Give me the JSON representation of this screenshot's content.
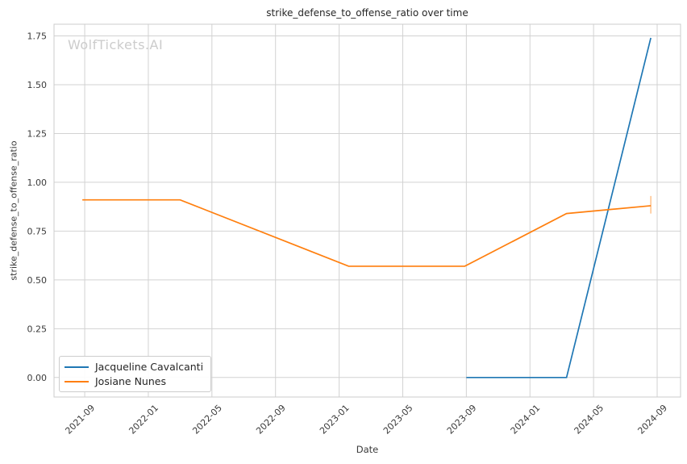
{
  "watermark": "WolfTickets.AI",
  "chart_data": {
    "type": "line",
    "title": "strike_defense_to_offense_ratio over time",
    "xlabel": "Date",
    "ylabel": "strike_defense_to_offense_ratio",
    "grid": true,
    "legend_position": "lower left",
    "x_unit": "months since 2021-09",
    "x_tick_months": [
      0,
      4,
      8,
      12,
      16,
      20,
      24,
      28,
      32,
      36
    ],
    "x_tick_labels": [
      "2021-09",
      "2022-01",
      "2022-05",
      "2022-09",
      "2023-01",
      "2023-05",
      "2023-09",
      "2024-01",
      "2024-05",
      "2024-09"
    ],
    "y_ticks": [
      0.0,
      0.25,
      0.5,
      0.75,
      1.0,
      1.25,
      1.5,
      1.75
    ],
    "y_tick_labels": [
      "0.00",
      "0.25",
      "0.50",
      "0.75",
      "1.00",
      "1.25",
      "1.50",
      "1.75"
    ],
    "xlim_months": [
      -1.93,
      37.47
    ],
    "ylim": [
      -0.1,
      1.81
    ],
    "series": [
      {
        "name": "Jacqueline Cavalcanti",
        "color": "#1f77b4",
        "points": [
          {
            "date": "2023-09",
            "x": 24.0,
            "y": 0.0
          },
          {
            "date": "2024-03",
            "x": 30.3,
            "y": 0.0
          },
          {
            "date": "2024-08",
            "x": 35.6,
            "y": 1.74
          }
        ]
      },
      {
        "name": "Josiane Nunes",
        "color": "#ff7f0e",
        "points": [
          {
            "date": "2021-09",
            "x": -0.15,
            "y": 0.91
          },
          {
            "date": "2022-03",
            "x": 6.0,
            "y": 0.91
          },
          {
            "date": "2023-01",
            "x": 16.6,
            "y": 0.57
          },
          {
            "date": "2023-09",
            "x": 23.9,
            "y": 0.57
          },
          {
            "date": "2024-03",
            "x": 30.3,
            "y": 0.84
          },
          {
            "date": "2024-08",
            "x": 35.6,
            "y": 0.88,
            "err_low": 0.84,
            "err_high": 0.93
          }
        ]
      }
    ],
    "colors": {
      "grid": "#d2d2d2",
      "spine": "#cccccc",
      "tick_text": "#3a3a3a",
      "title_text": "#262626",
      "watermark": "#cccccc",
      "error_bar": "rgba(255,127,14,0.45)"
    }
  }
}
